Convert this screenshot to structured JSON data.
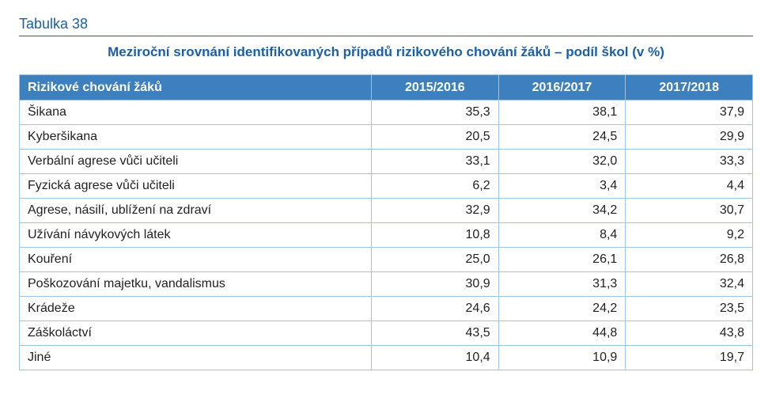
{
  "table_label": "Tabulka 38",
  "title": "Meziroční srovnání identifikovaných případů rizikového chování žáků – podíl škol (v %)",
  "table": {
    "columns": [
      "Rizikové chování žáků",
      "2015/2016",
      "2016/2017",
      "2017/2018"
    ],
    "rows": [
      [
        "Šikana",
        "35,3",
        "38,1",
        "37,9"
      ],
      [
        "Kyberšikana",
        "20,5",
        "24,5",
        "29,9"
      ],
      [
        "Verbální agrese vůči učiteli",
        "33,1",
        "32,0",
        "33,3"
      ],
      [
        "Fyzická agrese vůči učiteli",
        "6,2",
        "3,4",
        "4,4"
      ],
      [
        "Agrese, násilí, ublížení na zdraví",
        "32,9",
        "34,2",
        "30,7"
      ],
      [
        "Užívání návykových látek",
        "10,8",
        "8,4",
        "9,2"
      ],
      [
        "Kouření",
        "25,0",
        "26,1",
        "26,8"
      ],
      [
        "Poškozování majetku, vandalismus",
        "30,9",
        "31,3",
        "32,4"
      ],
      [
        "Krádeže",
        "24,6",
        "24,2",
        "23,5"
      ],
      [
        "Záškoláctví",
        "43,5",
        "44,8",
        "43,8"
      ],
      [
        "Jiné",
        "10,4",
        "10,9",
        "19,7"
      ]
    ],
    "colors": {
      "header_bg": "#3c80bf",
      "header_text": "#ffffff",
      "border": "#9cc4e4",
      "title_color": "#1b5fa6",
      "body_text": "#222222",
      "background": "#ffffff"
    },
    "typography": {
      "title_fontsize_pt": 13,
      "header_fontsize_pt": 12,
      "body_fontsize_pt": 12,
      "font_family": "Myriad Pro / sans-serif"
    },
    "layout": {
      "col_widths_pct": [
        48,
        17.33,
        17.33,
        17.33
      ],
      "number_align": "right",
      "label_align": "left",
      "header_align_first": "left",
      "header_align_rest": "center"
    }
  }
}
